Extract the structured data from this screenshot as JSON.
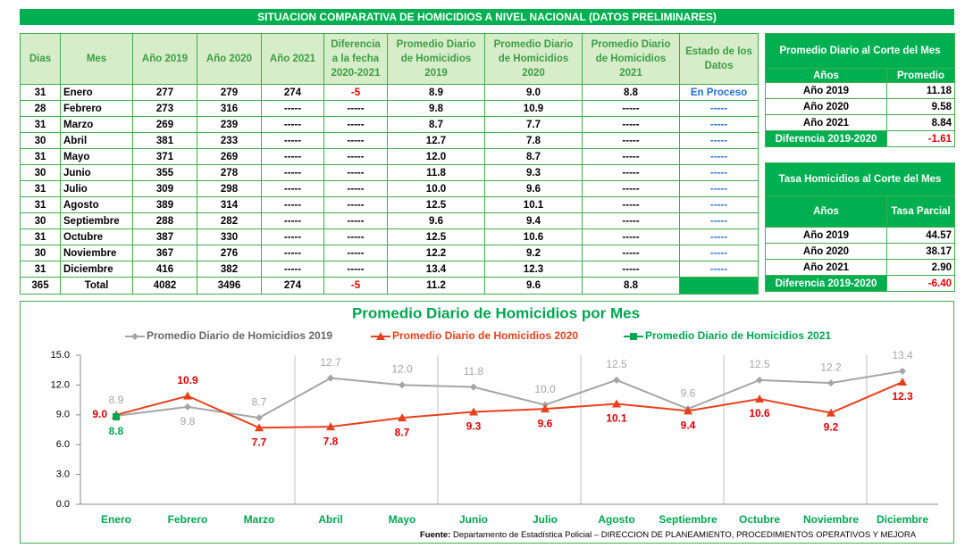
{
  "title": "SITUACION COMPARATIVA DE HOMICIDIOS A NIVEL NACIONAL (DATOS PRELIMINARES)",
  "table": {
    "columns": [
      "Dias",
      "Mes",
      "Año 2019",
      "Año 2020",
      "Año 2021",
      "Diferencia a la fecha 2020-2021",
      "Promedio Diario de Homicidios 2019",
      "Promedio Diario de Homicidios 2020",
      "Promedio Diario de Homicidios 2021",
      "Estado de los Datos"
    ],
    "rows": [
      [
        "31",
        "Enero",
        "277",
        "279",
        "274",
        "-5",
        "8.9",
        "9.0",
        "8.8",
        "En Proceso"
      ],
      [
        "28",
        "Febrero",
        "273",
        "316",
        "-----",
        "-----",
        "9.8",
        "10.9",
        "-----",
        "-----"
      ],
      [
        "31",
        "Marzo",
        "269",
        "239",
        "-----",
        "-----",
        "8.7",
        "7.7",
        "-----",
        "-----"
      ],
      [
        "30",
        "Abril",
        "381",
        "233",
        "-----",
        "-----",
        "12.7",
        "7.8",
        "-----",
        "-----"
      ],
      [
        "31",
        "Mayo",
        "371",
        "269",
        "-----",
        "-----",
        "12.0",
        "8.7",
        "-----",
        "-----"
      ],
      [
        "30",
        "Junio",
        "355",
        "278",
        "-----",
        "-----",
        "11.8",
        "9.3",
        "-----",
        "-----"
      ],
      [
        "31",
        "Julio",
        "309",
        "298",
        "-----",
        "-----",
        "10.0",
        "9.6",
        "-----",
        "-----"
      ],
      [
        "31",
        "Agosto",
        "389",
        "314",
        "-----",
        "-----",
        "12.5",
        "10.1",
        "-----",
        "-----"
      ],
      [
        "30",
        "Septiembre",
        "288",
        "282",
        "-----",
        "-----",
        "9.6",
        "9.4",
        "-----",
        "-----"
      ],
      [
        "31",
        "Octubre",
        "387",
        "330",
        "-----",
        "-----",
        "12.5",
        "10.6",
        "-----",
        "-----"
      ],
      [
        "30",
        "Noviembre",
        "367",
        "276",
        "-----",
        "-----",
        "12.2",
        "9.2",
        "-----",
        "-----"
      ],
      [
        "31",
        "Diciembre",
        "416",
        "382",
        "-----",
        "-----",
        "13.4",
        "12.3",
        "-----",
        "-----"
      ]
    ],
    "total": [
      "365",
      "Total",
      "4082",
      "3496",
      "274",
      "-5",
      "11.2",
      "9.6",
      "8.8"
    ]
  },
  "daily_average": {
    "title": "Promedio Diario al Corte del Mes",
    "columns": [
      "Años",
      "Promedio"
    ],
    "rows": [
      [
        "Año 2019",
        "11.18"
      ],
      [
        "Año 2020",
        "9.58"
      ],
      [
        "Año 2021",
        "8.84"
      ],
      [
        "Diferencia 2019-2020",
        "-1.61"
      ]
    ]
  },
  "rate": {
    "title": "Tasa Homicidios al Corte del Mes",
    "columns": [
      "Años",
      "Tasa Parcial"
    ],
    "rows": [
      [
        "Año 2019",
        "44.57"
      ],
      [
        "Año 2020",
        "38.17"
      ],
      [
        "Año 2021",
        "2.90"
      ],
      [
        "Diferencia 2019-2020",
        "-6.40"
      ]
    ]
  },
  "chart_data": {
    "type": "line",
    "title": "Promedio Diario de  Homicidios por Mes",
    "categories": [
      "Enero",
      "Febrero",
      "Marzo",
      "Abril",
      "Mayo",
      "Junio",
      "Julio",
      "Agosto",
      "Septiembre",
      "Octubre",
      "Noviembre",
      "Diciembre"
    ],
    "series": [
      {
        "name": "Promedio Diario de Homicidios 2019",
        "color": "#a5a5a5",
        "marker": "diamond",
        "values": [
          8.9,
          9.8,
          8.7,
          12.7,
          12.0,
          11.8,
          10.0,
          12.5,
          9.6,
          12.5,
          12.2,
          13.4
        ],
        "value_labels": [
          "8.9",
          "9.8",
          "8.7",
          "12.7",
          "12.0",
          "11.8",
          "10.0",
          "12.5",
          "9.6",
          "12.5",
          "12.2",
          "13.4"
        ]
      },
      {
        "name": "Promedio Diario de Homicidios 2020",
        "color": "#e8401c",
        "label_color": "#e00000",
        "marker": "triangle",
        "values": [
          9.0,
          10.9,
          7.7,
          7.8,
          8.7,
          9.3,
          9.6,
          10.1,
          9.4,
          10.6,
          9.2,
          12.3
        ],
        "value_labels": [
          "9.0",
          "10.9",
          "7.7",
          "7.8",
          "8.7",
          "9.3",
          "9.6",
          "10.1",
          "9.4",
          "10.6",
          "9.2",
          "12.3"
        ]
      },
      {
        "name": "Promedio Diario de Homicidios 2021",
        "color": "#00a650",
        "marker": "square",
        "values": [
          8.8,
          null,
          null,
          null,
          null,
          null,
          null,
          null,
          null,
          null,
          null,
          null
        ]
      }
    ],
    "ylim": [
      0,
      15
    ],
    "yticks": [
      {
        "value": 0,
        "label": "0.0"
      },
      {
        "value": 3,
        "label": "3.0"
      },
      {
        "value": 6,
        "label": "6.0"
      },
      {
        "value": 9,
        "label": "9.0"
      },
      {
        "value": 12,
        "label": "12.0"
      },
      {
        "value": 15,
        "label": "15.0"
      }
    ]
  },
  "source": {
    "label": "Fuente:",
    "text": "Departamento de Estadística Policial – DIRECCION DE PLANEAMIENTO, PROCEDIMIENTOS OPERATIVOS Y MEJORA"
  }
}
